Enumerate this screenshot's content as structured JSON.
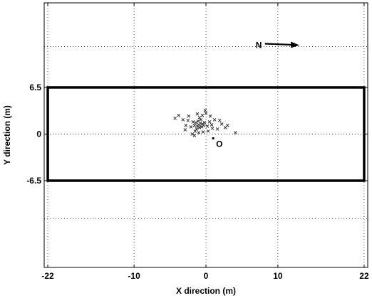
{
  "chart_data": {
    "type": "scatter",
    "xlabel": "X direction (m)",
    "ylabel": "Y direction (m)",
    "xlim": [
      -22.5,
      22.5
    ],
    "ylim": [
      -18.6,
      18.3
    ],
    "grid": true,
    "xticks": [
      {
        "value": -22,
        "label": "-22"
      },
      {
        "value": -10,
        "label": "-10"
      },
      {
        "value": 0,
        "label": "0"
      },
      {
        "value": 10,
        "label": "10"
      },
      {
        "value": 22,
        "label": "22"
      }
    ],
    "yticks": [
      {
        "value": 6.5,
        "label": "6.5"
      },
      {
        "value": 0,
        "label": "0"
      },
      {
        "value": -6.5,
        "label": "-6.5"
      }
    ],
    "vgrid": [
      -22,
      -10,
      0,
      10,
      22
    ],
    "hgrid": [
      12.2,
      6.5,
      0,
      -6.5,
      -11.8
    ],
    "rectangle": {
      "x1": -22,
      "x2": 22,
      "y1": -6.5,
      "y2": 6.5
    },
    "origin_label": "O",
    "origin_point": {
      "x": 1.0,
      "y": -0.6
    },
    "north_label": "N",
    "north_arrow": {
      "x_from": 8.2,
      "x_to": 13.0,
      "y": 12.5
    },
    "points": [
      {
        "x": -1.0,
        "y": 1.3
      },
      {
        "x": -0.8,
        "y": 1.5
      },
      {
        "x": -1.2,
        "y": 1.1
      },
      {
        "x": -0.5,
        "y": 1.4
      },
      {
        "x": -0.9,
        "y": 0.9
      },
      {
        "x": -1.4,
        "y": 1.6
      },
      {
        "x": -0.6,
        "y": 1.0
      },
      {
        "x": -1.1,
        "y": 1.8
      },
      {
        "x": -0.3,
        "y": 1.2
      },
      {
        "x": -1.6,
        "y": 1.2
      },
      {
        "x": -0.7,
        "y": 2.0
      },
      {
        "x": -1.3,
        "y": 0.7
      },
      {
        "x": -0.2,
        "y": 1.6
      },
      {
        "x": -1.8,
        "y": 1.7
      },
      {
        "x": -0.9,
        "y": 2.3
      },
      {
        "x": 0.2,
        "y": 1.1
      },
      {
        "x": -2.1,
        "y": 1.0
      },
      {
        "x": -1.5,
        "y": 0.4
      },
      {
        "x": 0.5,
        "y": 1.7
      },
      {
        "x": -2.5,
        "y": 1.9
      },
      {
        "x": -0.4,
        "y": 0.3
      },
      {
        "x": 0.8,
        "y": 1.3
      },
      {
        "x": -2.8,
        "y": 1.2
      },
      {
        "x": -1.2,
        "y": 2.8
      },
      {
        "x": 0.0,
        "y": 2.9
      },
      {
        "x": -3.2,
        "y": 2.0
      },
      {
        "x": 1.2,
        "y": 2.0
      },
      {
        "x": -1.9,
        "y": 0.0
      },
      {
        "x": 1.6,
        "y": 0.7
      },
      {
        "x": -3.8,
        "y": 2.6
      },
      {
        "x": 0.3,
        "y": 0.4
      },
      {
        "x": 2.2,
        "y": 1.4
      },
      {
        "x": -0.1,
        "y": 3.3
      },
      {
        "x": -2.4,
        "y": 2.5
      },
      {
        "x": 2.7,
        "y": 0.9
      },
      {
        "x": 4.1,
        "y": 0.2
      },
      {
        "x": -1.6,
        "y": -0.2
      },
      {
        "x": 0.6,
        "y": 2.5
      },
      {
        "x": -2.9,
        "y": 0.6
      },
      {
        "x": 1.9,
        "y": 1.9
      },
      {
        "x": -0.5,
        "y": 2.6
      },
      {
        "x": -1.0,
        "y": 0.2
      },
      {
        "x": 0.9,
        "y": 0.8
      },
      {
        "x": -4.3,
        "y": 2.2
      },
      {
        "x": 3.0,
        "y": 1.2
      }
    ]
  }
}
